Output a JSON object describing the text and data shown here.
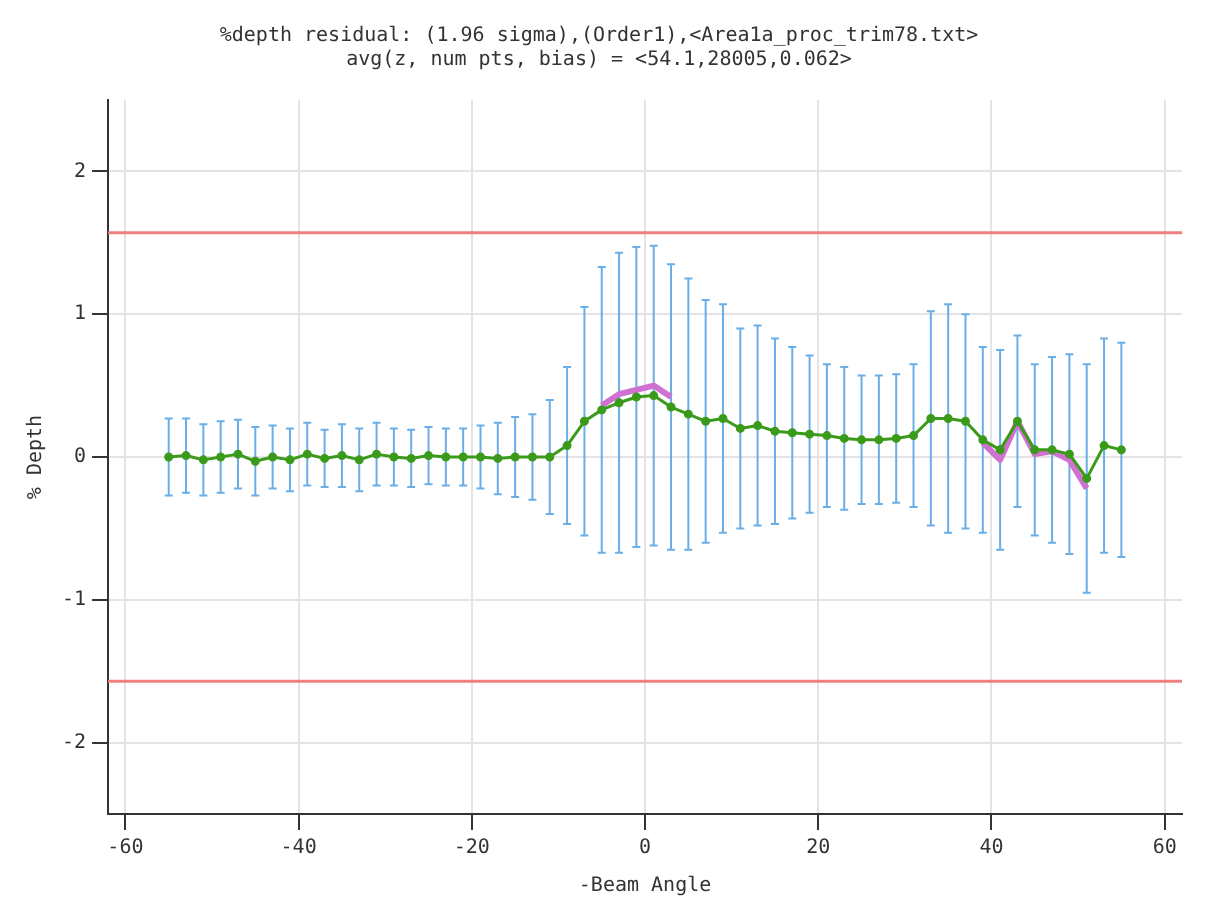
{
  "chart_data": {
    "type": "line",
    "title": "%depth residual: (1.96 sigma),(Order1),<Area1a_proc_trim78.txt>",
    "subtitle": "avg(z, num pts, bias) = <54.1,28005,0.062>",
    "xlabel": "-Beam Angle",
    "ylabel": "% Depth",
    "x": [
      -55,
      -53,
      -51,
      -49,
      -47,
      -45,
      -43,
      -41,
      -39,
      -37,
      -35,
      -33,
      -31,
      -29,
      -27,
      -25,
      -23,
      -21,
      -19,
      -17,
      -15,
      -13,
      -11,
      -9,
      -7,
      -5,
      -3,
      -1,
      1,
      3,
      5,
      7,
      9,
      11,
      13,
      15,
      17,
      19,
      21,
      23,
      25,
      27,
      29,
      31,
      33,
      35,
      37,
      39,
      41,
      43,
      45,
      47,
      49,
      51,
      53,
      55
    ],
    "series": [
      {
        "color": "#d070d0",
        "marker": "none",
        "values": [
          null,
          null,
          null,
          null,
          null,
          null,
          null,
          null,
          null,
          null,
          null,
          null,
          null,
          null,
          null,
          null,
          null,
          null,
          null,
          null,
          null,
          null,
          null,
          null,
          null,
          0.36,
          0.44,
          0.47,
          0.5,
          0.42,
          null,
          null,
          null,
          null,
          null,
          null,
          null,
          null,
          null,
          null,
          null,
          null,
          null,
          null,
          null,
          null,
          null,
          0.1,
          -0.02,
          0.25,
          0.02,
          0.04,
          -0.02,
          -0.22,
          null,
          null
        ]
      },
      {
        "color": "#3a9a1a",
        "marker": "circle",
        "values": [
          0,
          0.01,
          -0.02,
          0,
          0.02,
          -0.03,
          0,
          -0.02,
          0.02,
          -0.01,
          0.01,
          -0.02,
          0.02,
          0,
          -0.01,
          0.01,
          0,
          0,
          0,
          -0.01,
          0,
          0,
          0,
          0.08,
          0.25,
          0.33,
          0.38,
          0.42,
          0.43,
          0.35,
          0.3,
          0.25,
          0.27,
          0.2,
          0.22,
          0.18,
          0.17,
          0.16,
          0.15,
          0.13,
          0.12,
          0.12,
          0.13,
          0.15,
          0.27,
          0.27,
          0.25,
          0.12,
          0.05,
          0.25,
          0.05,
          0.05,
          0.02,
          -0.15,
          0.08,
          0.05
        ],
        "errors": [
          0.27,
          0.26,
          0.25,
          0.25,
          0.24,
          0.24,
          0.22,
          0.22,
          0.22,
          0.2,
          0.22,
          0.22,
          0.22,
          0.2,
          0.2,
          0.2,
          0.2,
          0.2,
          0.22,
          0.25,
          0.28,
          0.3,
          0.4,
          0.55,
          0.8,
          1.0,
          1.05,
          1.05,
          1.05,
          1.0,
          0.95,
          0.85,
          0.8,
          0.7,
          0.7,
          0.65,
          0.6,
          0.55,
          0.5,
          0.5,
          0.45,
          0.45,
          0.45,
          0.5,
          0.75,
          0.8,
          0.75,
          0.65,
          0.7,
          0.6,
          0.6,
          0.65,
          0.7,
          0.8,
          0.75,
          0.75
        ]
      }
    ],
    "ref_lines": [
      {
        "axis": "y",
        "value": 1.57,
        "color": "#f08080"
      },
      {
        "axis": "y",
        "value": -1.57,
        "color": "#f08080"
      }
    ],
    "xlim": [
      -62,
      62
    ],
    "xticks": [
      -60,
      -40,
      -20,
      0,
      20,
      40,
      60
    ],
    "ylim": [
      -2.5,
      2.5
    ],
    "yticks": [
      -2,
      -1,
      0,
      1,
      2
    ],
    "grid": true,
    "legend": false
  }
}
